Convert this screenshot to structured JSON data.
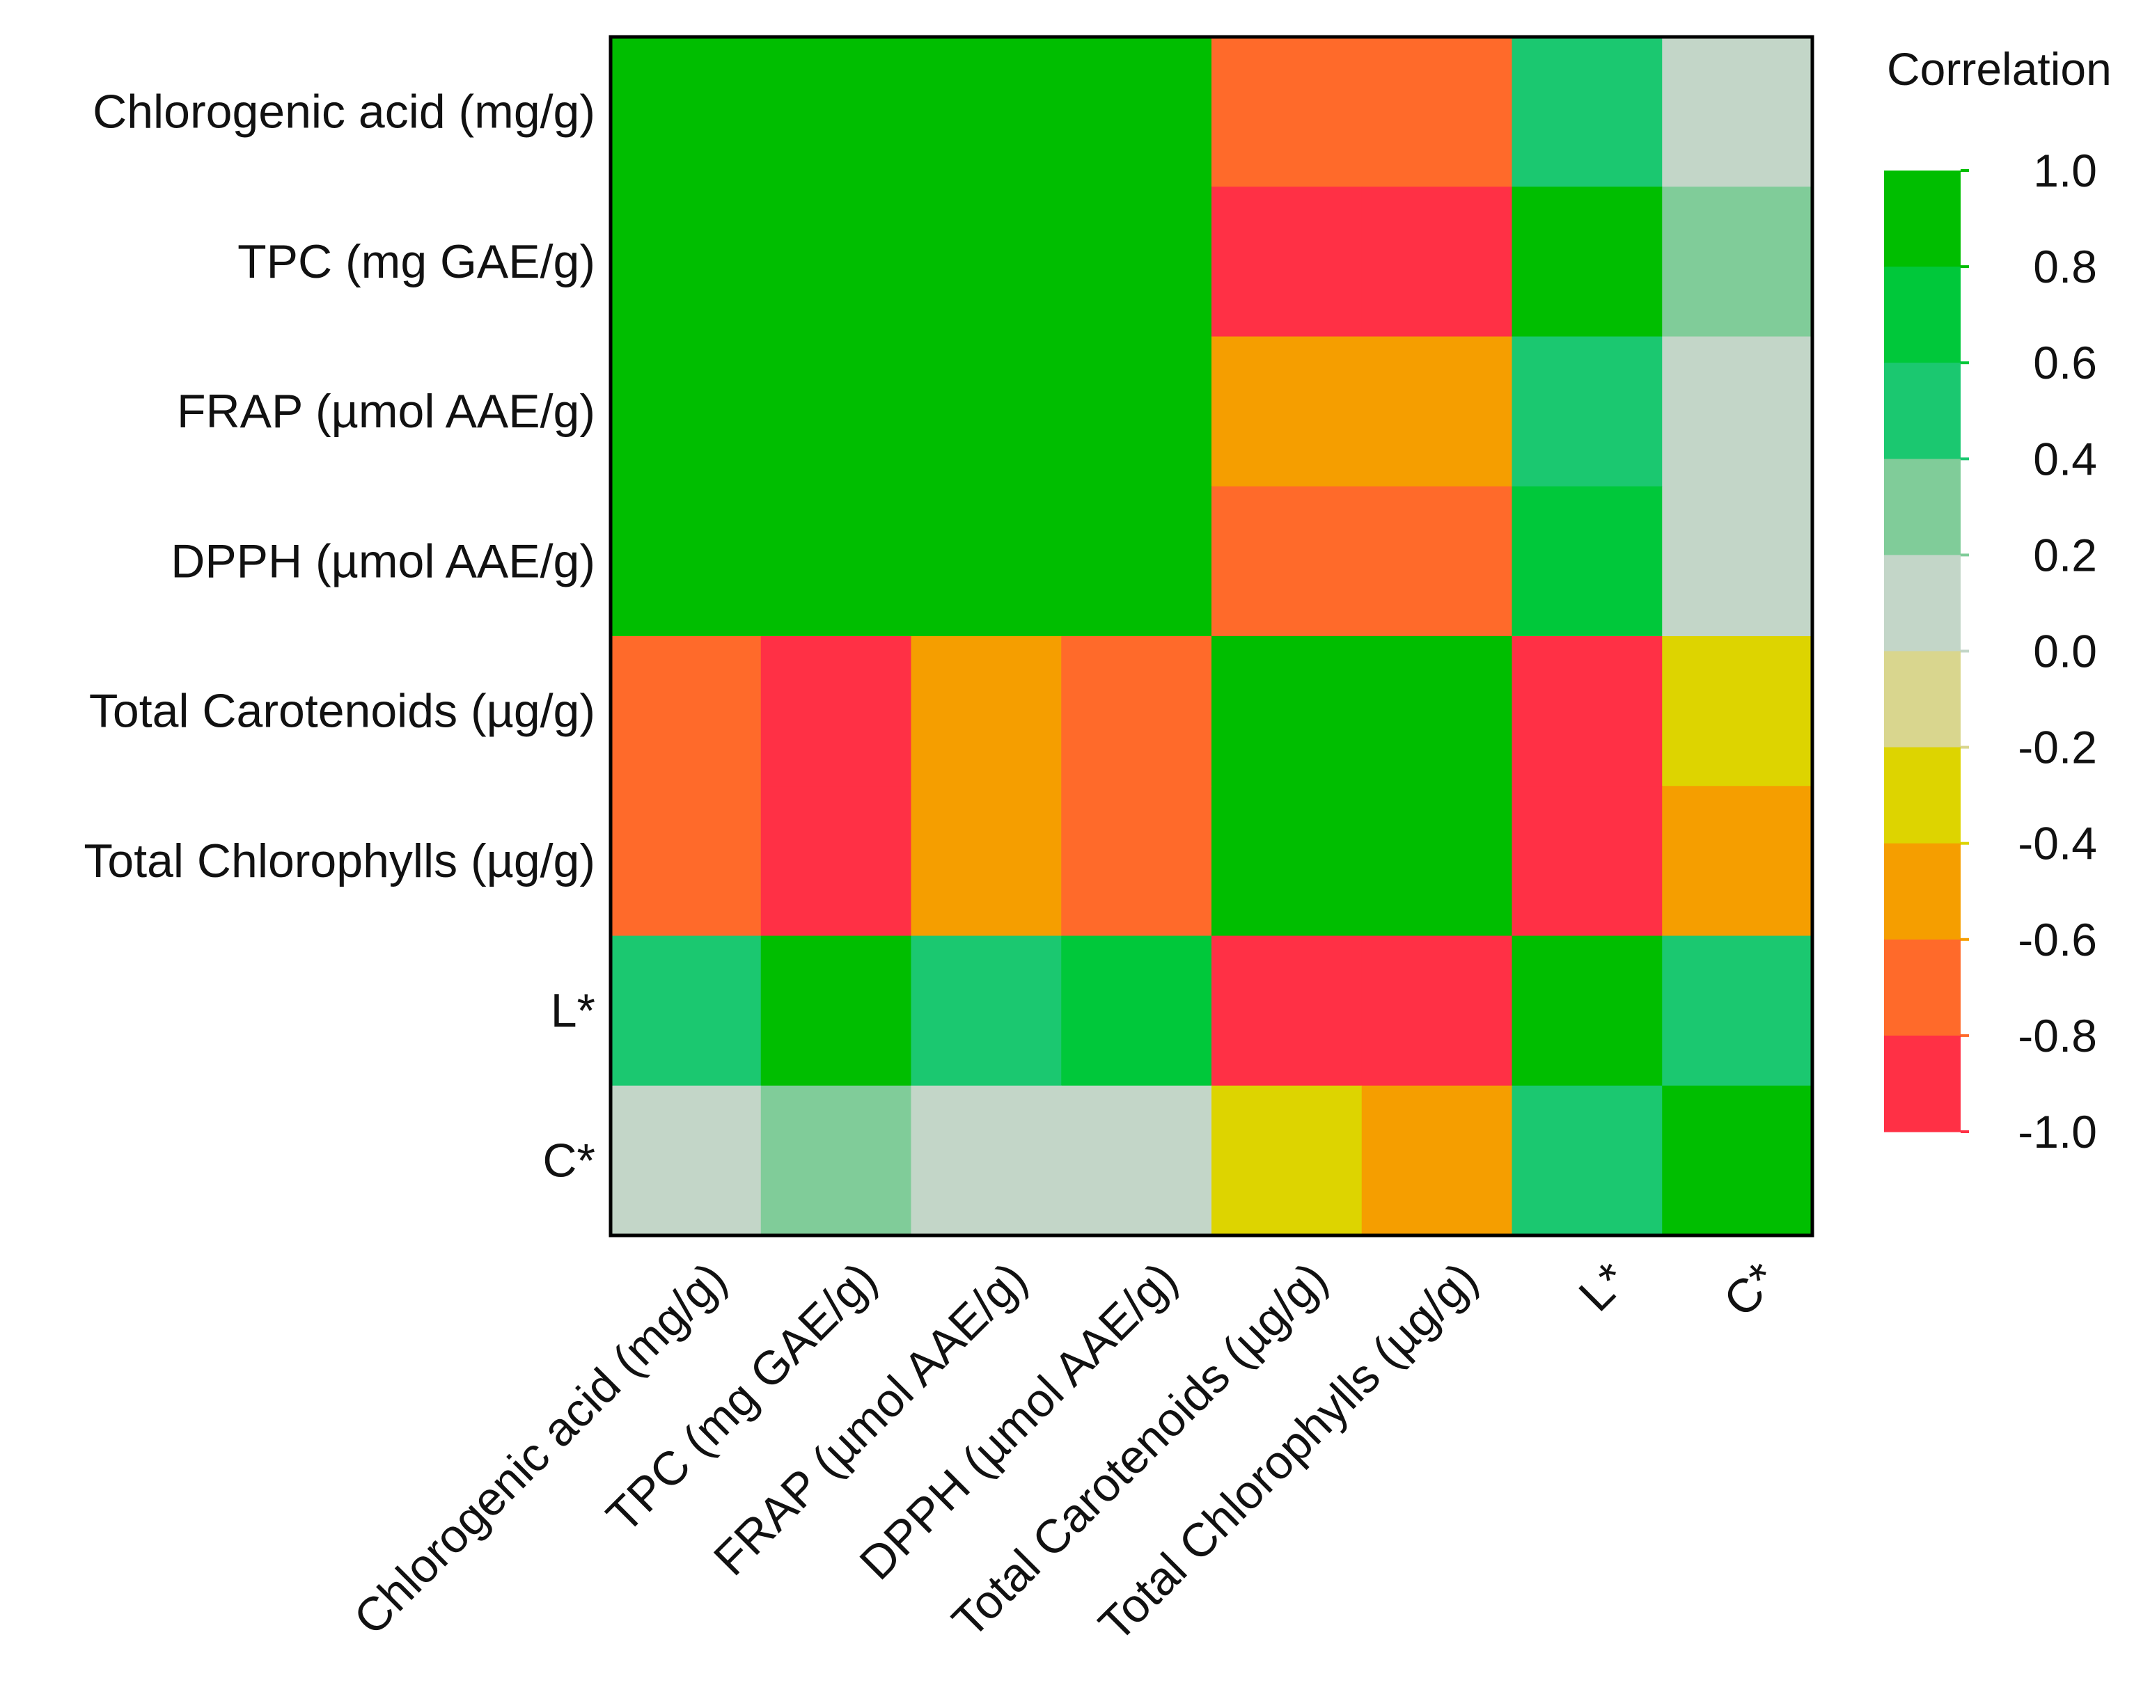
{
  "chart_data": {
    "type": "heatmap",
    "legend_title": "Correlation",
    "row_labels": [
      "Chlorogenic acid (mg/g)",
      "TPC (mg GAE/g)",
      "FRAP (µmol AAE/g)",
      "DPPH (µmol AAE/g)",
      "Total Carotenoids (µg/g)",
      "Total Chlorophylls (µg/g)",
      "L*",
      "C*"
    ],
    "col_labels": [
      "Chlorogenic acid (mg/g)",
      "TPC (mg GAE/g)",
      "FRAP (µmol AAE/g)",
      "DPPH (µmol AAE/g)",
      "Total Carotenoids (µg/g)",
      "Total Chlorophylls (µg/g)",
      "L*",
      "C*"
    ],
    "values": [
      [
        1.0,
        0.95,
        0.98,
        0.99,
        -0.7,
        -0.7,
        0.5,
        0.1
      ],
      [
        0.95,
        1.0,
        0.9,
        0.95,
        -0.9,
        -0.9,
        0.9,
        0.3
      ],
      [
        0.98,
        0.9,
        1.0,
        0.98,
        -0.5,
        -0.5,
        0.5,
        0.1
      ],
      [
        0.99,
        0.95,
        0.98,
        1.0,
        -0.7,
        -0.7,
        0.7,
        0.1
      ],
      [
        -0.7,
        -0.9,
        -0.5,
        -0.7,
        1.0,
        0.99,
        -0.9,
        -0.3
      ],
      [
        -0.7,
        -0.9,
        -0.5,
        -0.7,
        0.99,
        1.0,
        -0.9,
        -0.5
      ],
      [
        0.5,
        0.9,
        0.5,
        0.7,
        -0.9,
        -0.9,
        1.0,
        0.5
      ],
      [
        0.1,
        0.3,
        0.1,
        0.1,
        -0.3,
        -0.5,
        0.5,
        1.0
      ]
    ],
    "colorbar": {
      "range": [
        -1.0,
        1.0
      ],
      "ticks": [
        "1.0",
        "0.8",
        "0.6",
        "0.4",
        "0.2",
        "0.0",
        "-0.2",
        "-0.4",
        "-0.6",
        "-0.8",
        "-1.0"
      ],
      "bands": [
        {
          "from": 0.8,
          "to": 1.0,
          "color": "#00BE00"
        },
        {
          "from": 0.6,
          "to": 0.8,
          "color": "#00C83A"
        },
        {
          "from": 0.4,
          "to": 0.6,
          "color": "#1BC870"
        },
        {
          "from": 0.2,
          "to": 0.4,
          "color": "#80CC99"
        },
        {
          "from": 0.0,
          "to": 0.2,
          "color": "#C3D6C8"
        },
        {
          "from": -0.2,
          "to": 0.0,
          "color": "#D9D68E"
        },
        {
          "from": -0.4,
          "to": -0.2,
          "color": "#DDD400"
        },
        {
          "from": -0.6,
          "to": -0.4,
          "color": "#F59E00"
        },
        {
          "from": -0.8,
          "to": -0.6,
          "color": "#FF6A2A"
        },
        {
          "from": -1.0,
          "to": -0.8,
          "color": "#FF3045"
        }
      ]
    }
  }
}
